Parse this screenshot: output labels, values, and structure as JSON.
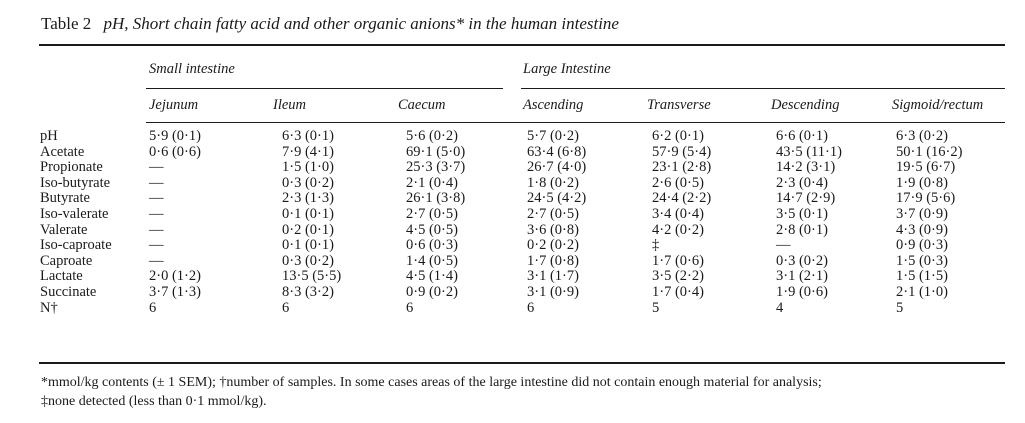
{
  "table": {
    "number": "Table 2",
    "title": "pH, Short chain fatty acid and other organic anions* in the human intestine",
    "groups": {
      "small": "Small intestine",
      "large": "Large Intestine"
    },
    "columns": [
      "Jejunum",
      "Ileum",
      "Caecum",
      "Ascending",
      "Transverse",
      "Descending",
      "Sigmoid/rectum"
    ],
    "rows": [
      {
        "label": "pH",
        "cells": [
          "5·9 (0·1)",
          "6·3 (0·1)",
          "5·6 (0·2)",
          "5·7 (0·2)",
          "6·2 (0·1)",
          "6·6 (0·1)",
          "6·3 (0·2)"
        ]
      },
      {
        "label": "Acetate",
        "cells": [
          "0·6 (0·6)",
          "7·9 (4·1)",
          "69·1 (5·0)",
          "63·4 (6·8)",
          "57·9 (5·4)",
          "43·5 (11·1)",
          "50·1 (16·2)"
        ]
      },
      {
        "label": "Propionate",
        "cells": [
          "—",
          "1·5 (1·0)",
          "25·3 (3·7)",
          "26·7 (4·0)",
          "23·1 (2·8)",
          "14·2 (3·1)",
          "19·5 (6·7)"
        ]
      },
      {
        "label": "Iso-butyrate",
        "cells": [
          "—",
          "0·3 (0·2)",
          "2·1 (0·4)",
          "1·8 (0·2)",
          "2·6 (0·5)",
          "2·3 (0·4)",
          "1·9 (0·8)"
        ]
      },
      {
        "label": "Butyrate",
        "cells": [
          "—",
          "2·3 (1·3)",
          "26·1 (3·8)",
          "24·5 (4·2)",
          "24·4 (2·2)",
          "14·7 (2·9)",
          "17·9 (5·6)"
        ]
      },
      {
        "label": "Iso-valerate",
        "cells": [
          "—",
          "0·1 (0·1)",
          "2·7 (0·5)",
          "2·7 (0·5)",
          "3·4 (0·4)",
          "3·5 (0·1)",
          "3·7 (0·9)"
        ]
      },
      {
        "label": "Valerate",
        "cells": [
          "—",
          "0·2 (0·1)",
          "4·5 (0·5)",
          "3·6 (0·8)",
          "4·2 (0·2)",
          "2·8 (0·1)",
          "4·3 (0·9)"
        ]
      },
      {
        "label": "Iso-caproate",
        "cells": [
          "—",
          "0·1 (0·1)",
          "0·6 (0·3)",
          "0·2 (0·2)",
          "‡",
          "—",
          "0·9 (0·3)"
        ]
      },
      {
        "label": "Caproate",
        "cells": [
          "—",
          "0·3 (0·2)",
          "1·4 (0·5)",
          "1·7 (0·8)",
          "1·7 (0·6)",
          "0·3 (0·2)",
          "1·5 (0·3)"
        ]
      },
      {
        "label": "Lactate",
        "cells": [
          "2·0 (1·2)",
          "13·5 (5·5)",
          "4·5 (1·4)",
          "3·1 (1·7)",
          "3·5 (2·2)",
          "3·1 (2·1)",
          "1·5 (1·5)"
        ]
      },
      {
        "label": "Succinate",
        "cells": [
          "3·7 (1·3)",
          "8·3 (3·2)",
          "0·9 (0·2)",
          "3·1 (0·9)",
          "1·7 (0·4)",
          "1·9 (0·6)",
          "2·1 (1·0)"
        ]
      },
      {
        "label": "N†",
        "cells": [
          "6",
          "6",
          "6",
          "6",
          "5",
          "4",
          "5"
        ]
      }
    ]
  },
  "footnote": {
    "line1": "*mmol/kg contents (± 1 SEM); †number of samples. In some cases areas of the large intestine did not contain enough material for analysis;",
    "line2": "‡none detected (less than 0·1 mmol/kg)."
  }
}
